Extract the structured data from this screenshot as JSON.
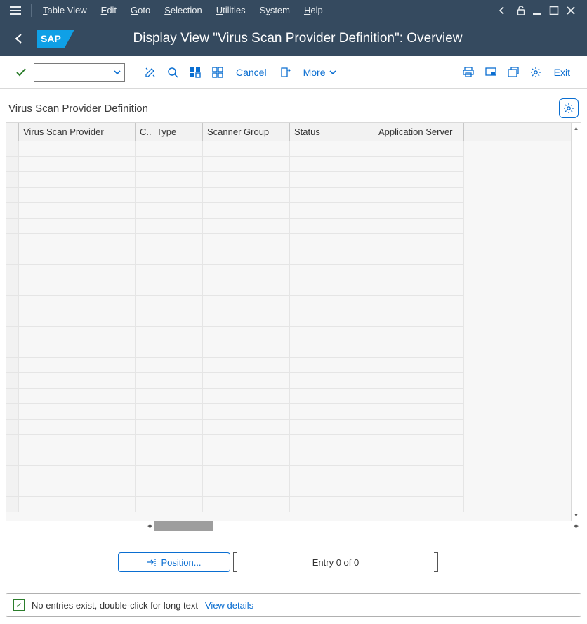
{
  "menubar": {
    "items": [
      {
        "pre": "",
        "u": "T",
        "post": "able View"
      },
      {
        "pre": "",
        "u": "E",
        "post": "dit"
      },
      {
        "pre": "",
        "u": "G",
        "post": "oto"
      },
      {
        "pre": "",
        "u": "S",
        "post": "election"
      },
      {
        "pre": "",
        "u": "U",
        "post": "tilities"
      },
      {
        "pre": "S",
        "u": "y",
        "post": "stem"
      },
      {
        "pre": "",
        "u": "H",
        "post": "elp"
      }
    ]
  },
  "titlebar": {
    "logo_text": "SAP",
    "title": "Display View \"Virus Scan Provider Definition\": Overview"
  },
  "toolbar": {
    "cancel_label": "Cancel",
    "more_label": "More",
    "exit_label": "Exit",
    "select_value": ""
  },
  "section": {
    "title": "Virus Scan Provider Definition"
  },
  "grid": {
    "columns": [
      {
        "label": "Virus Scan Provider",
        "width": 166
      },
      {
        "label": "C..",
        "width": 24
      },
      {
        "label": "Type",
        "width": 72
      },
      {
        "label": "Scanner Group",
        "width": 124
      },
      {
        "label": "Status",
        "width": 120
      },
      {
        "label": "Application Server",
        "width": 128
      }
    ],
    "row_count": 24,
    "hscroll_thumb_width": 84,
    "colors": {
      "row_bg": "#f7f7f7",
      "header_bg": "#f2f2f2",
      "border": "#d9d9d9"
    }
  },
  "footer": {
    "position_label": "Position...",
    "entry_text": "Entry 0 of 0"
  },
  "status": {
    "message": "No entries exist, double-click for long text",
    "link": "View details"
  },
  "colors": {
    "shell": "#354a5f",
    "accent": "#0a6ed1",
    "success": "#2b7d2b"
  }
}
